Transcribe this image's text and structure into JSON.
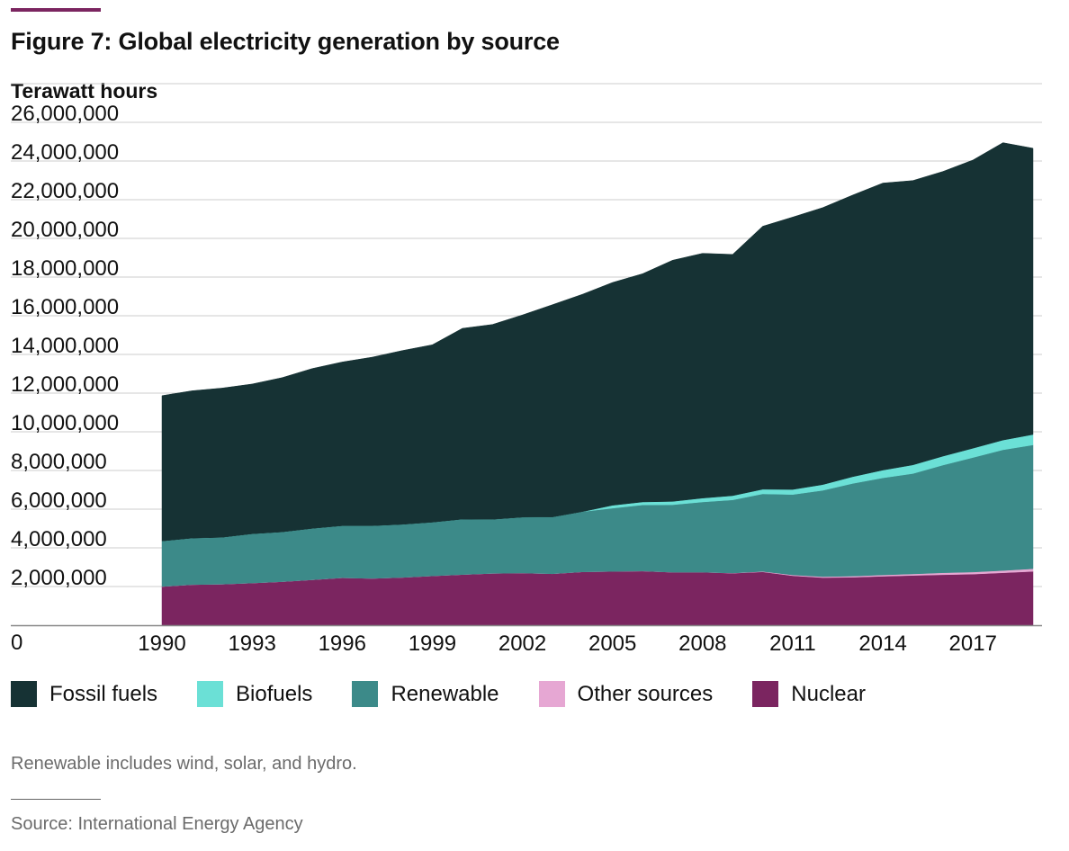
{
  "header": {
    "title": "Figure 7: Global electricity generation by source",
    "unit_label": "Terawatt hours"
  },
  "footer": {
    "note": "Renewable includes wind, solar, and hydro.",
    "source": "Source: International Energy Agency"
  },
  "colors": {
    "fossil": "#163234",
    "biofuels": "#6be0d6",
    "renewable": "#3c8a89",
    "other": "#e6a7d3",
    "nuclear": "#7b2560",
    "grid": "#cccccc",
    "axis": "#888888"
  },
  "chart_data": {
    "type": "area",
    "stacked": true,
    "title": "Figure 7: Global electricity generation by source",
    "ylabel": "Terawatt hours",
    "xlabel": "",
    "ylim": [
      0,
      26000000
    ],
    "xlim": [
      1990,
      2019
    ],
    "yticks": [
      {
        "value": 0,
        "label": "0"
      },
      {
        "value": 2000000,
        "label": "2,000,000"
      },
      {
        "value": 4000000,
        "label": "4,000,000"
      },
      {
        "value": 6000000,
        "label": "6,000,000"
      },
      {
        "value": 8000000,
        "label": "8,000,000"
      },
      {
        "value": 10000000,
        "label": "10,000,000"
      },
      {
        "value": 12000000,
        "label": "12,000,000"
      },
      {
        "value": 14000000,
        "label": "14,000,000"
      },
      {
        "value": 16000000,
        "label": "16,000,000"
      },
      {
        "value": 18000000,
        "label": "18,000,000"
      },
      {
        "value": 20000000,
        "label": "20,000,000"
      },
      {
        "value": 22000000,
        "label": "22,000,000"
      },
      {
        "value": 24000000,
        "label": "24,000,000"
      },
      {
        "value": 26000000,
        "label": "26,000,000"
      }
    ],
    "xticks": [
      {
        "value": 1990,
        "label": "1990"
      },
      {
        "value": 1993,
        "label": "1993"
      },
      {
        "value": 1996,
        "label": "1996"
      },
      {
        "value": 1999,
        "label": "1999"
      },
      {
        "value": 2002,
        "label": "2002"
      },
      {
        "value": 2005,
        "label": "2005"
      },
      {
        "value": 2008,
        "label": "2008"
      },
      {
        "value": 2011,
        "label": "2011"
      },
      {
        "value": 2014,
        "label": "2014"
      },
      {
        "value": 2017,
        "label": "2017"
      }
    ],
    "x": [
      1990,
      1991,
      1992,
      1993,
      1994,
      1995,
      1996,
      1997,
      1998,
      1999,
      2000,
      2001,
      2002,
      2003,
      2004,
      2005,
      2006,
      2007,
      2008,
      2009,
      2010,
      2011,
      2012,
      2013,
      2014,
      2015,
      2016,
      2017,
      2018,
      2019
    ],
    "series": [
      {
        "name": "Nuclear",
        "color_key": "nuclear",
        "values": [
          2000000,
          2100000,
          2120000,
          2180000,
          2250000,
          2350000,
          2450000,
          2420000,
          2470000,
          2550000,
          2620000,
          2680000,
          2700000,
          2660000,
          2760000,
          2780000,
          2800000,
          2740000,
          2740000,
          2690000,
          2760000,
          2560000,
          2460000,
          2480000,
          2530000,
          2570000,
          2610000,
          2640000,
          2710000,
          2780000
        ]
      },
      {
        "name": "Other sources",
        "color_key": "other",
        "values": [
          0,
          0,
          0,
          0,
          0,
          0,
          0,
          0,
          0,
          0,
          0,
          0,
          0,
          0,
          0,
          0,
          0,
          0,
          0,
          10000,
          20000,
          40000,
          50000,
          60000,
          70000,
          80000,
          100000,
          110000,
          120000,
          140000
        ]
      },
      {
        "name": "Renewable",
        "color_key": "renewable",
        "values": [
          2350000,
          2400000,
          2420000,
          2540000,
          2570000,
          2650000,
          2690000,
          2720000,
          2740000,
          2770000,
          2860000,
          2790000,
          2880000,
          2930000,
          3110000,
          3270000,
          3420000,
          3490000,
          3630000,
          3780000,
          4010000,
          4160000,
          4460000,
          4790000,
          5020000,
          5190000,
          5570000,
          5920000,
          6240000,
          6400000
        ]
      },
      {
        "name": "Biofuels",
        "color_key": "biofuels",
        "values": [
          0,
          0,
          0,
          0,
          0,
          0,
          0,
          0,
          0,
          0,
          0,
          0,
          0,
          0,
          0,
          150000,
          150000,
          170000,
          200000,
          220000,
          240000,
          260000,
          300000,
          350000,
          400000,
          450000,
          460000,
          480000,
          500000,
          540000
        ]
      },
      {
        "name": "Fossil fuels",
        "color_key": "fossil",
        "values": [
          7520000,
          7620000,
          7720000,
          7750000,
          7980000,
          8270000,
          8470000,
          8720000,
          8990000,
          9180000,
          9870000,
          10080000,
          10460000,
          10980000,
          11240000,
          11520000,
          11800000,
          12470000,
          12660000,
          12470000,
          13600000,
          14080000,
          14320000,
          14560000,
          14840000,
          14700000,
          14720000,
          14900000,
          15380000,
          14800000
        ]
      }
    ],
    "legend": {
      "placement": "bottom-left",
      "entries": [
        {
          "label": "Fossil fuels",
          "color_key": "fossil"
        },
        {
          "label": "Biofuels",
          "color_key": "biofuels"
        },
        {
          "label": "Renewable",
          "color_key": "renewable"
        },
        {
          "label": "Other sources",
          "color_key": "other"
        },
        {
          "label": "Nuclear",
          "color_key": "nuclear"
        }
      ]
    },
    "grid": true
  }
}
